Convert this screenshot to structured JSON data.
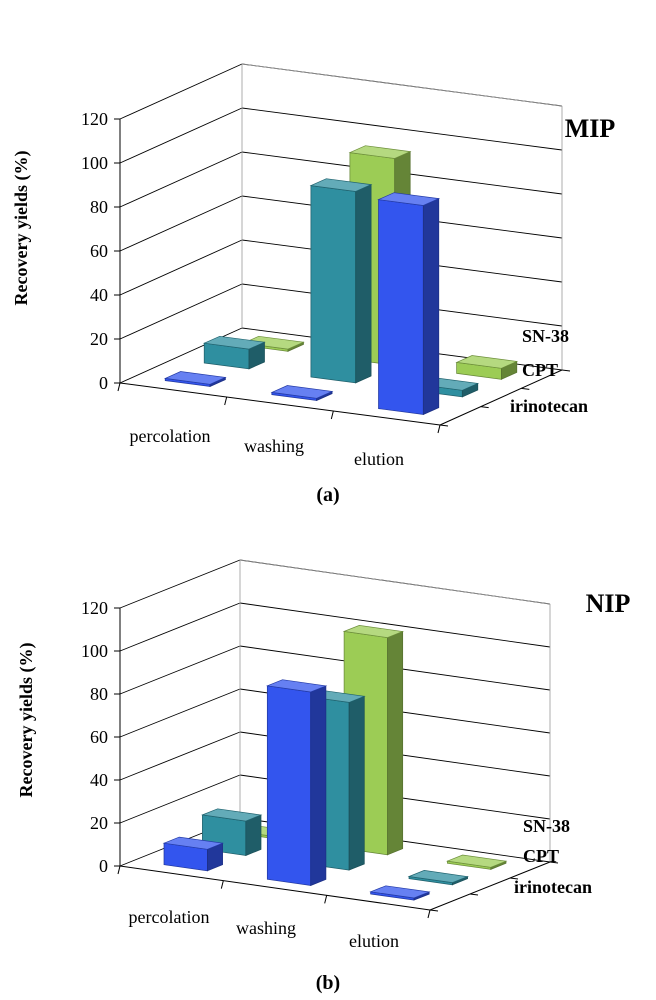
{
  "figure": {
    "panel_labels": [
      "(a)",
      "(b)"
    ]
  },
  "chart_data": [
    {
      "type": "bar3d",
      "title": "MIP",
      "ylabel": "Recovery yields (%)",
      "ylim": [
        0,
        120
      ],
      "yticks": [
        0,
        20,
        40,
        60,
        80,
        100,
        120
      ],
      "categories": [
        "percolation",
        "washing",
        "elution"
      ],
      "grid": true,
      "series": [
        {
          "name": "irinotecan",
          "color": "#3355ee",
          "values": [
            1,
            1,
            95
          ]
        },
        {
          "name": "CPT",
          "color": "#2f8fa0",
          "values": [
            9,
            87,
            3
          ]
        },
        {
          "name": "SN-38",
          "color": "#9ccc55",
          "values": [
            1,
            94,
            5
          ]
        }
      ]
    },
    {
      "type": "bar3d",
      "title": "NIP",
      "ylabel": "Recovery yields (%)",
      "ylim": [
        0,
        120
      ],
      "yticks": [
        0,
        20,
        40,
        60,
        80,
        100,
        120
      ],
      "categories": [
        "percolation",
        "washing",
        "elution"
      ],
      "grid": true,
      "series": [
        {
          "name": "irinotecan",
          "color": "#3355ee",
          "values": [
            10,
            90,
            1
          ]
        },
        {
          "name": "CPT",
          "color": "#2f8fa0",
          "values": [
            16,
            78,
            1
          ]
        },
        {
          "name": "SN-38",
          "color": "#9ccc55",
          "values": [
            1,
            101,
            1
          ]
        }
      ]
    }
  ]
}
